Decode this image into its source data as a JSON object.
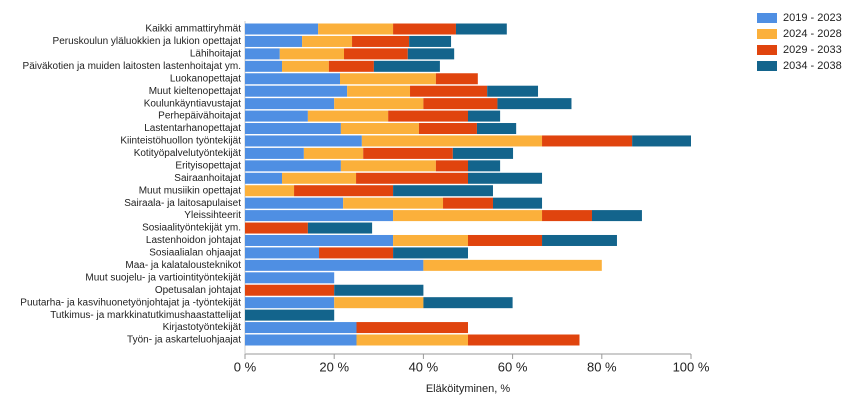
{
  "chart_data": {
    "type": "bar",
    "orientation": "horizontal",
    "stacked": true,
    "x_label": "Eläköityminen, %",
    "categories": [
      "Kaikki ammattiryhmät",
      "Peruskoulun yläluokkien ja lukion opettajat",
      "Lähihoitajat",
      "Päiväkotien ja muiden laitosten lastenhoitajat ym.",
      "Luokanopettajat",
      "Muut kieltenopettajat",
      "Koulunkäyntiavustajat",
      "Perhepäivähoitajat",
      "Lastentarhanopettajat",
      "Kiinteistöhuollon työntekijät",
      "Kotityöpalvelutyöntekijät",
      "Erityisopettajat",
      "Sairaanhoitajat",
      "Muut musiikin opettajat",
      "Sairaala- ja laitosapulaiset",
      "Yleissihteerit",
      "Sosiaalityöntekijät ym.",
      "Lastenhoidon johtajat",
      "Sosiaalialan ohjaajat",
      "Maa- ja kalatalousteknikot",
      "Muut suojelu- ja vartiointityöntekijät",
      "Opetusalan johtajat",
      "Puutarha- ja kasvihuonetyönjohtajat ja -työntekijät",
      "Tutkimus- ja markkinatutkimushaastattelijat",
      "Kirjastotyöntekijät",
      "Työn- ja askarteluohjaajat"
    ],
    "series": [
      {
        "name": "2019 - 2023",
        "color": "#4f8fe3",
        "values": [
          16.4,
          12.8,
          7.8,
          8.3,
          21.3,
          22.9,
          20,
          14.1,
          21.5,
          26.2,
          13.2,
          21.5,
          8.3,
          null,
          22,
          33.2,
          null,
          33.2,
          16.6,
          40,
          20,
          null,
          20,
          null,
          25,
          25
        ]
      },
      {
        "name": "2024 - 2028",
        "color": "#fbb03b",
        "values": [
          16.8,
          11.2,
          14.4,
          10.5,
          21.5,
          14.1,
          20,
          18,
          17.5,
          40.4,
          13.3,
          21.3,
          16.6,
          11,
          22.4,
          33.4,
          null,
          16.8,
          null,
          40,
          null,
          null,
          20,
          null,
          null,
          25
        ]
      },
      {
        "name": "2029 - 2033",
        "color": "#e0440e",
        "values": [
          14.1,
          12.8,
          14.3,
          10.1,
          9.4,
          17.3,
          16.6,
          17.9,
          13,
          20.2,
          20.1,
          7.2,
          25.1,
          22.2,
          11.2,
          11.2,
          14.1,
          16.6,
          16.6,
          null,
          null,
          20,
          null,
          null,
          25,
          25
        ]
      },
      {
        "name": "2034 - 2038",
        "color": "#13648c",
        "values": [
          11.4,
          9.4,
          10.4,
          14.8,
          null,
          11.4,
          16.6,
          7.2,
          8.8,
          13.2,
          13.5,
          7.2,
          16.6,
          22.4,
          11,
          11.2,
          14.4,
          16.8,
          16.8,
          null,
          null,
          20,
          20,
          20,
          null,
          null
        ]
      }
    ],
    "xlim": [
      0,
      100
    ],
    "xticks": [
      {
        "value": 0,
        "label": "0 %"
      },
      {
        "value": 20,
        "label": "20 %"
      },
      {
        "value": 40,
        "label": "40 %"
      },
      {
        "value": 60,
        "label": "60 %"
      },
      {
        "value": 80,
        "label": "80 %"
      },
      {
        "value": 100,
        "label": "100 %"
      }
    ],
    "legend": "top-right"
  }
}
